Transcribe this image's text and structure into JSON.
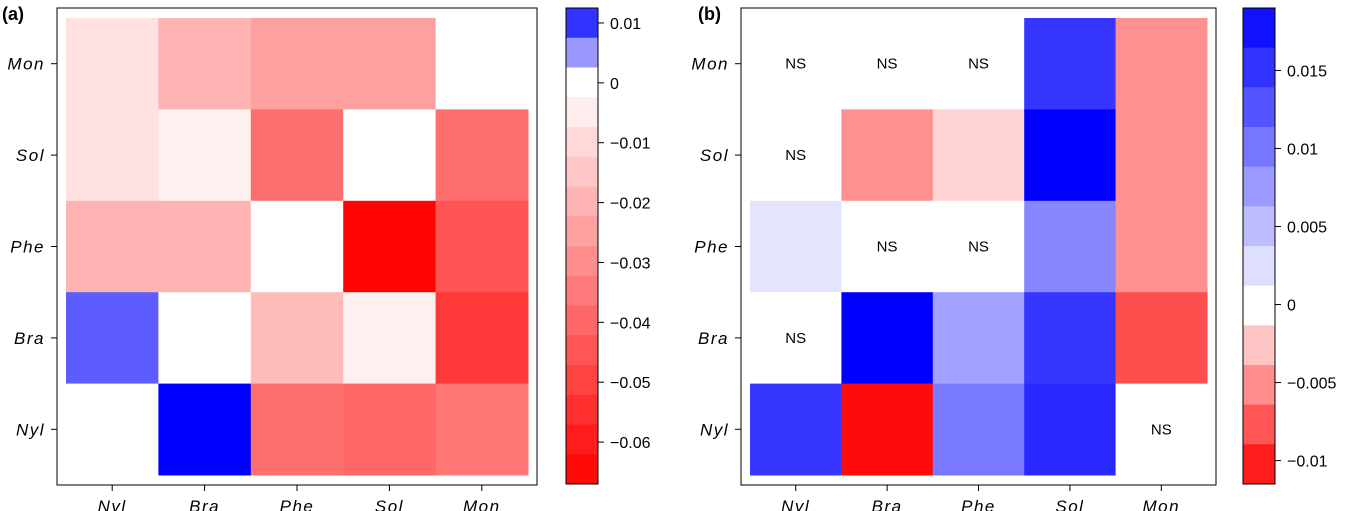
{
  "chart_data": [
    {
      "type": "heatmap",
      "panel_label": "(a)",
      "x_categories": [
        "Nyl",
        "Bra",
        "Phe",
        "Sol",
        "Mon"
      ],
      "y_categories": [
        "Mon",
        "Sol",
        "Phe",
        "Bra",
        "Nyl"
      ],
      "values": [
        [
          -0.008,
          -0.02,
          -0.025,
          -0.025,
          null
        ],
        [
          -0.008,
          -0.004,
          -0.038,
          0,
          -0.038
        ],
        [
          -0.02,
          -0.02,
          0,
          -0.066,
          -0.045
        ],
        [
          0.008,
          0,
          -0.018,
          -0.004,
          -0.052
        ],
        [
          null,
          0.014,
          -0.038,
          -0.04,
          -0.036
        ]
      ],
      "colorbar": {
        "min": -0.067,
        "max": 0.0125,
        "ticks": [
          "0.01",
          "0",
          "−0.01",
          "−0.02",
          "−0.03",
          "−0.04",
          "−0.05",
          "−0.06"
        ],
        "tick_values": [
          0.01,
          0,
          -0.01,
          -0.02,
          -0.03,
          -0.04,
          -0.05,
          -0.06
        ]
      },
      "colors": {
        "positive": "#0000ff",
        "negative": "#ff0000",
        "zero": "#ffffff"
      }
    },
    {
      "type": "heatmap",
      "panel_label": "(b)",
      "x_categories": [
        "Nyl",
        "Bra",
        "Phe",
        "Sol",
        "Mon"
      ],
      "y_categories": [
        "Mon",
        "Sol",
        "Phe",
        "Bra",
        "Nyl"
      ],
      "values": [
        [
          "NS",
          "NS",
          "NS",
          0.015,
          -0.005
        ],
        [
          "NS",
          -0.005,
          -0.002,
          0.019,
          -0.005
        ],
        [
          0.002,
          "NS",
          "NS",
          0.009,
          -0.005
        ],
        [
          "NS",
          0.019,
          0.007,
          0.015,
          -0.008
        ],
        [
          0.015,
          -0.011,
          0.01,
          0.016,
          "NS"
        ]
      ],
      "colorbar": {
        "min": -0.0115,
        "max": 0.019,
        "ticks": [
          "0.015",
          "0.01",
          "0.005",
          "0",
          "−0.005",
          "−0.01"
        ],
        "tick_values": [
          0.015,
          0.01,
          0.005,
          0,
          -0.005,
          -0.01
        ]
      },
      "colors": {
        "positive": "#0000ff",
        "negative": "#ff0000",
        "zero": "#ffffff"
      }
    }
  ]
}
